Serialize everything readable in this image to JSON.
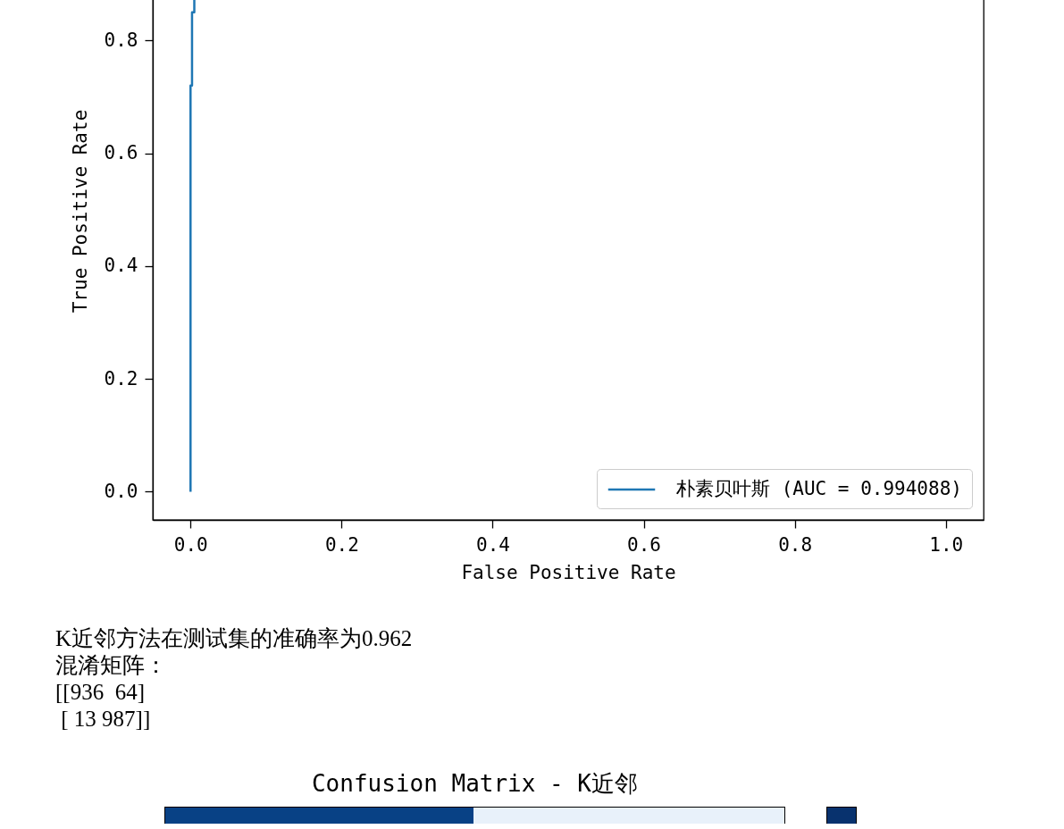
{
  "chart_data": [
    {
      "type": "line",
      "xlabel": "False Positive Rate",
      "ylabel": "True Positive Rate",
      "series": [
        {
          "name": "朴素贝叶斯 (AUC = 0.994088)",
          "color": "#1f77b4",
          "x": [
            0,
            0,
            0.002,
            0.002,
            0.005,
            0.005
          ],
          "values": [
            0,
            0.72,
            0.72,
            0.85,
            0.85,
            0.875
          ]
        }
      ],
      "xlim": [
        -0.05,
        1.05
      ],
      "ylim": [
        -0.05,
        0.875
      ],
      "xticks": [
        {
          "value": 0,
          "label": "0.0"
        },
        0.2,
        0.4,
        0.6,
        0.8,
        {
          "value": 1,
          "label": "1.0"
        }
      ],
      "yticks": [
        {
          "value": 0,
          "label": "0.0"
        },
        0.2,
        0.4,
        0.6,
        0.8
      ],
      "legend": "bottom right"
    },
    {
      "type": "other",
      "annotations": [
        "K近邻方法在测试集的准确率为0.962",
        "混淆矩阵：",
        "[[936  64]",
        " [ 13 987]]"
      ]
    },
    {
      "type": "other",
      "title": "Confusion Matrix - K近邻"
    }
  ]
}
